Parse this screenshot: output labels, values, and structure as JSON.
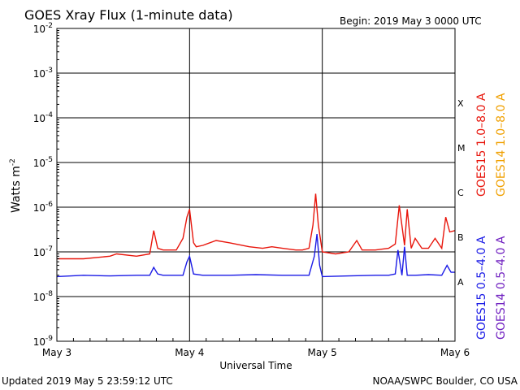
{
  "chart_data": {
    "type": "line",
    "title": "GOES Xray Flux (1-minute data)",
    "begin_text": "Begin:  2019 May 3 0000 UTC",
    "xlabel": "Universal Time",
    "ylabel": "Watts m",
    "ylabel_sup": "-2",
    "updated_text": "Updated 2019 May  5 23:59:12 UTC",
    "credit_text": "NOAA/SWPC Boulder, CO USA",
    "x_ticks": [
      "May 3",
      "May 4",
      "May 5",
      "May 6"
    ],
    "y_scale": "log",
    "ylim": [
      1e-09,
      0.01
    ],
    "y_tick_exponents": [
      -2,
      -3,
      -4,
      -5,
      -6,
      -7,
      -8,
      -9
    ],
    "flare_classes": [
      {
        "label": "X",
        "flux": 0.0001
      },
      {
        "label": "M",
        "flux": 1e-05
      },
      {
        "label": "C",
        "flux": 1e-06
      },
      {
        "label": "B",
        "flux": 1e-07
      },
      {
        "label": "A",
        "flux": 1e-08
      }
    ],
    "legend": [
      {
        "name": "GOES15 1.0–8.0 A",
        "color": "#e8160c"
      },
      {
        "name": "GOES14 1.0–8.0 A",
        "color": "#f0a000"
      },
      {
        "name": "GOES15 0.5–4.0 A",
        "color": "#1a1ae6"
      },
      {
        "name": "GOES14 0.5–4.0 A",
        "color": "#7020c0"
      }
    ],
    "series": [
      {
        "name": "GOES15 1.0–8.0 A",
        "color": "#e8160c",
        "x_days": [
          0,
          0.2,
          0.4,
          0.45,
          0.6,
          0.7,
          0.73,
          0.76,
          0.8,
          0.9,
          0.95,
          0.98,
          1.0,
          1.03,
          1.05,
          1.1,
          1.2,
          1.3,
          1.45,
          1.55,
          1.62,
          1.7,
          1.8,
          1.85,
          1.9,
          1.93,
          1.95,
          1.97,
          2.0,
          2.1,
          2.2,
          2.26,
          2.3,
          2.4,
          2.5,
          2.55,
          2.58,
          2.62,
          2.64,
          2.67,
          2.7,
          2.75,
          2.8,
          2.85,
          2.9,
          2.93,
          2.96,
          3.0
        ],
        "y": [
          7e-08,
          7e-08,
          8e-08,
          9e-08,
          8e-08,
          9e-08,
          3e-07,
          1.2e-07,
          1.1e-07,
          1.1e-07,
          2e-07,
          6e-07,
          9e-07,
          1.6e-07,
          1.3e-07,
          1.4e-07,
          1.8e-07,
          1.6e-07,
          1.3e-07,
          1.2e-07,
          1.3e-07,
          1.2e-07,
          1.1e-07,
          1.1e-07,
          1.2e-07,
          4e-07,
          2e-06,
          4e-07,
          1e-07,
          9e-08,
          1e-07,
          1.8e-07,
          1.1e-07,
          1.1e-07,
          1.2e-07,
          1.5e-07,
          1.1e-06,
          1.4e-07,
          9e-07,
          1.2e-07,
          2e-07,
          1.2e-07,
          1.2e-07,
          2e-07,
          1.2e-07,
          6e-07,
          2.8e-07,
          3e-07
        ]
      },
      {
        "name": "GOES15 0.5–4.0 A",
        "color": "#1a1ae6",
        "x_days": [
          0,
          0.2,
          0.4,
          0.6,
          0.7,
          0.73,
          0.76,
          0.8,
          0.95,
          0.98,
          1.0,
          1.03,
          1.1,
          1.3,
          1.5,
          1.7,
          1.9,
          1.94,
          1.96,
          1.98,
          2.0,
          2.2,
          2.4,
          2.5,
          2.55,
          2.57,
          2.6,
          2.62,
          2.64,
          2.7,
          2.8,
          2.9,
          2.94,
          2.97,
          3.0
        ],
        "y": [
          2.8e-08,
          3e-08,
          2.9e-08,
          3e-08,
          3e-08,
          4.5e-08,
          3.2e-08,
          3e-08,
          3e-08,
          6e-08,
          8e-08,
          3.2e-08,
          3e-08,
          3e-08,
          3.1e-08,
          3e-08,
          3e-08,
          8e-08,
          2.5e-07,
          5e-08,
          2.8e-08,
          2.9e-08,
          3e-08,
          3e-08,
          3.2e-08,
          1.1e-07,
          3e-08,
          1.3e-07,
          3e-08,
          3e-08,
          3.1e-08,
          3e-08,
          5e-08,
          3.5e-08,
          3.5e-08
        ]
      }
    ]
  }
}
